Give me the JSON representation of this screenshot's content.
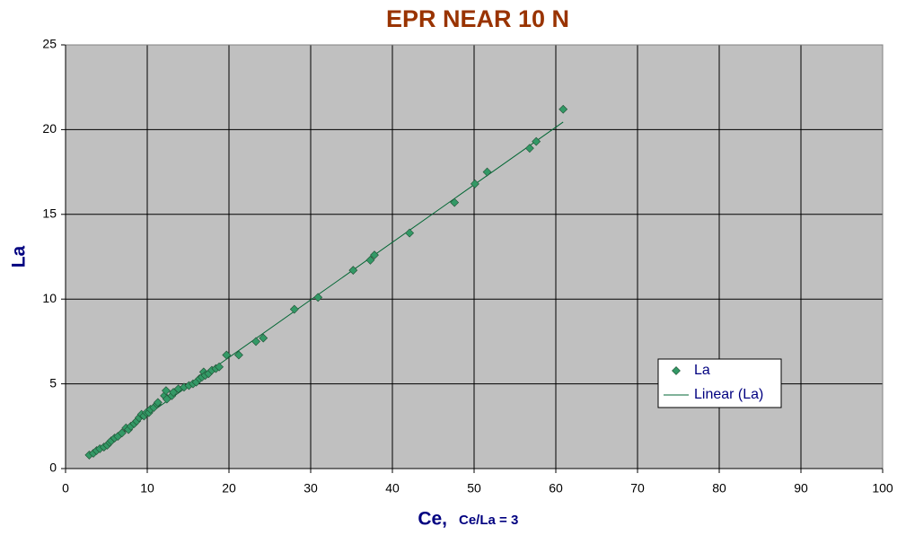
{
  "chart_data": {
    "type": "scatter",
    "title": "EPR NEAR 10 N",
    "x_label": "Ce,",
    "x_label_note": "Ce/La = 3",
    "y_label": "La",
    "xlim": [
      0,
      100
    ],
    "xticks": [
      0,
      10,
      20,
      30,
      40,
      50,
      60,
      70,
      80,
      90,
      100
    ],
    "ylim": [
      0,
      25
    ],
    "yticks": [
      0,
      5,
      10,
      15,
      20,
      25
    ],
    "grid": true,
    "series": [
      {
        "name": "La",
        "color": "#339966",
        "x": [
          2.9,
          3.4,
          3.8,
          4.2,
          4.7,
          5.1,
          5.4,
          5.6,
          6.0,
          6.4,
          6.9,
          7.4,
          7.7,
          8.0,
          8.4,
          8.7,
          9.0,
          9.3,
          9.6,
          9.9,
          10.2,
          10.4,
          10.8,
          11.2,
          11.3,
          12.1,
          12.3,
          12.4,
          13.0,
          13.2,
          13.8,
          14.5,
          15.1,
          15.6,
          16.0,
          16.4,
          16.7,
          16.9,
          17.1,
          17.5,
          17.9,
          18.4,
          18.8,
          19.7,
          21.2,
          23.3,
          24.2,
          28.0,
          30.9,
          35.2,
          37.3,
          37.8,
          42.1,
          47.6,
          50.1,
          51.6,
          56.8,
          57.6,
          60.9
        ],
        "values": [
          0.8,
          0.9,
          1.06,
          1.17,
          1.27,
          1.38,
          1.54,
          1.64,
          1.8,
          1.9,
          2.1,
          2.4,
          2.3,
          2.5,
          2.65,
          2.8,
          3.0,
          3.2,
          3.1,
          3.3,
          3.3,
          3.5,
          3.6,
          3.8,
          3.9,
          4.3,
          4.6,
          4.1,
          4.3,
          4.5,
          4.7,
          4.8,
          4.9,
          5.0,
          5.1,
          5.3,
          5.4,
          5.7,
          5.5,
          5.6,
          5.8,
          5.9,
          6.0,
          6.7,
          6.7,
          7.5,
          7.7,
          9.4,
          10.1,
          11.7,
          12.3,
          12.6,
          13.9,
          15.7,
          16.8,
          17.5,
          18.9,
          19.3,
          21.2
        ]
      },
      {
        "name": "Linear (La)",
        "color": "#006633",
        "x": [
          2.9,
          60.9
        ],
        "values": [
          0.75,
          20.45
        ]
      }
    ]
  }
}
